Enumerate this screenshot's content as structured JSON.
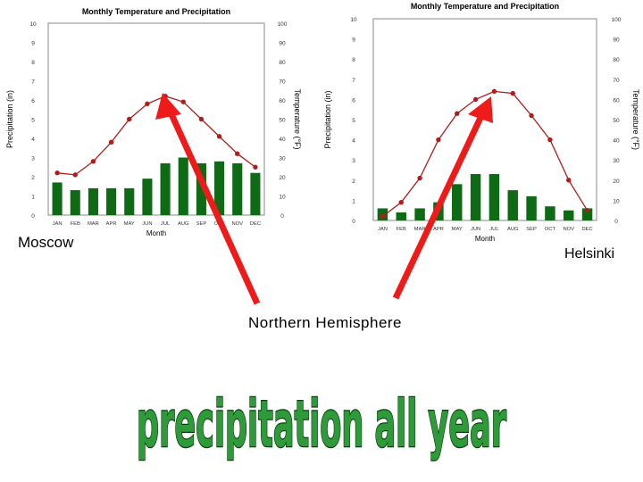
{
  "labels": {
    "moscow": "Moscow",
    "helsinki": "Helsinki",
    "hemisphere": "Northern Hemisphere",
    "headline": "precipitation all year"
  },
  "colors": {
    "bars": "#0e6a14",
    "line": "#b01c1c",
    "arrows": "#ee1b1b",
    "headline_fill": "#2f9a3a",
    "headline_stroke": "#0a4010"
  },
  "chart_data": [
    {
      "type": "bar",
      "title": "Monthly Temperature and Precipitation",
      "place": "Moscow",
      "xlabel": "Month",
      "ylabel": "Precipitation (in)",
      "ylabel_right": "Temperature (°F)",
      "categories": [
        "JAN",
        "FEB",
        "MAR",
        "APR",
        "MAY",
        "JUN",
        "JUL",
        "AUG",
        "SEP",
        "OCT",
        "NOV",
        "DEC"
      ],
      "ylim": [
        0,
        10
      ],
      "y2lim": [
        0,
        100
      ],
      "yticks": [
        "0",
        "1",
        "2",
        "3",
        "4",
        "5",
        "6",
        "7",
        "8",
        "9",
        "10"
      ],
      "y2ticks": [
        "0",
        "10",
        "20",
        "30",
        "40",
        "50",
        "60",
        "70",
        "80",
        "90",
        "100"
      ],
      "series": [
        {
          "kind": "bar",
          "axis": "left",
          "values": [
            1.7,
            1.3,
            1.4,
            1.4,
            1.4,
            1.9,
            2.7,
            3.0,
            2.7,
            2.8,
            2.7,
            2.2
          ]
        },
        {
          "kind": "line",
          "axis": "right",
          "values": [
            22,
            21,
            28,
            38,
            50,
            58,
            62,
            59,
            50,
            41,
            32,
            25
          ]
        }
      ]
    },
    {
      "type": "bar",
      "title": "Monthly Temperature and Precipitation",
      "place": "Helsinki",
      "xlabel": "Month",
      "ylabel": "Precipitation (in)",
      "ylabel_right": "Temperature (°F)",
      "categories": [
        "JAN",
        "FEB",
        "MAR",
        "APR",
        "MAY",
        "JUN",
        "JUL",
        "AUG",
        "SEP",
        "OCT",
        "NOV",
        "DEC"
      ],
      "ylim": [
        0,
        10
      ],
      "y2lim": [
        0,
        100
      ],
      "yticks": [
        "0",
        "1",
        "2",
        "3",
        "4",
        "5",
        "6",
        "7",
        "8",
        "9",
        "10"
      ],
      "y2ticks": [
        "0",
        "10",
        "20",
        "30",
        "40",
        "50",
        "60",
        "70",
        "80",
        "90",
        "100"
      ],
      "series": [
        {
          "kind": "bar",
          "axis": "left",
          "values": [
            0.6,
            0.4,
            0.6,
            0.9,
            1.8,
            2.3,
            2.3,
            1.5,
            1.2,
            0.7,
            0.5,
            0.6
          ]
        },
        {
          "kind": "line",
          "axis": "right",
          "values": [
            2,
            9,
            21,
            40,
            53,
            60,
            64,
            63,
            52,
            40,
            20,
            5
          ]
        }
      ]
    }
  ]
}
